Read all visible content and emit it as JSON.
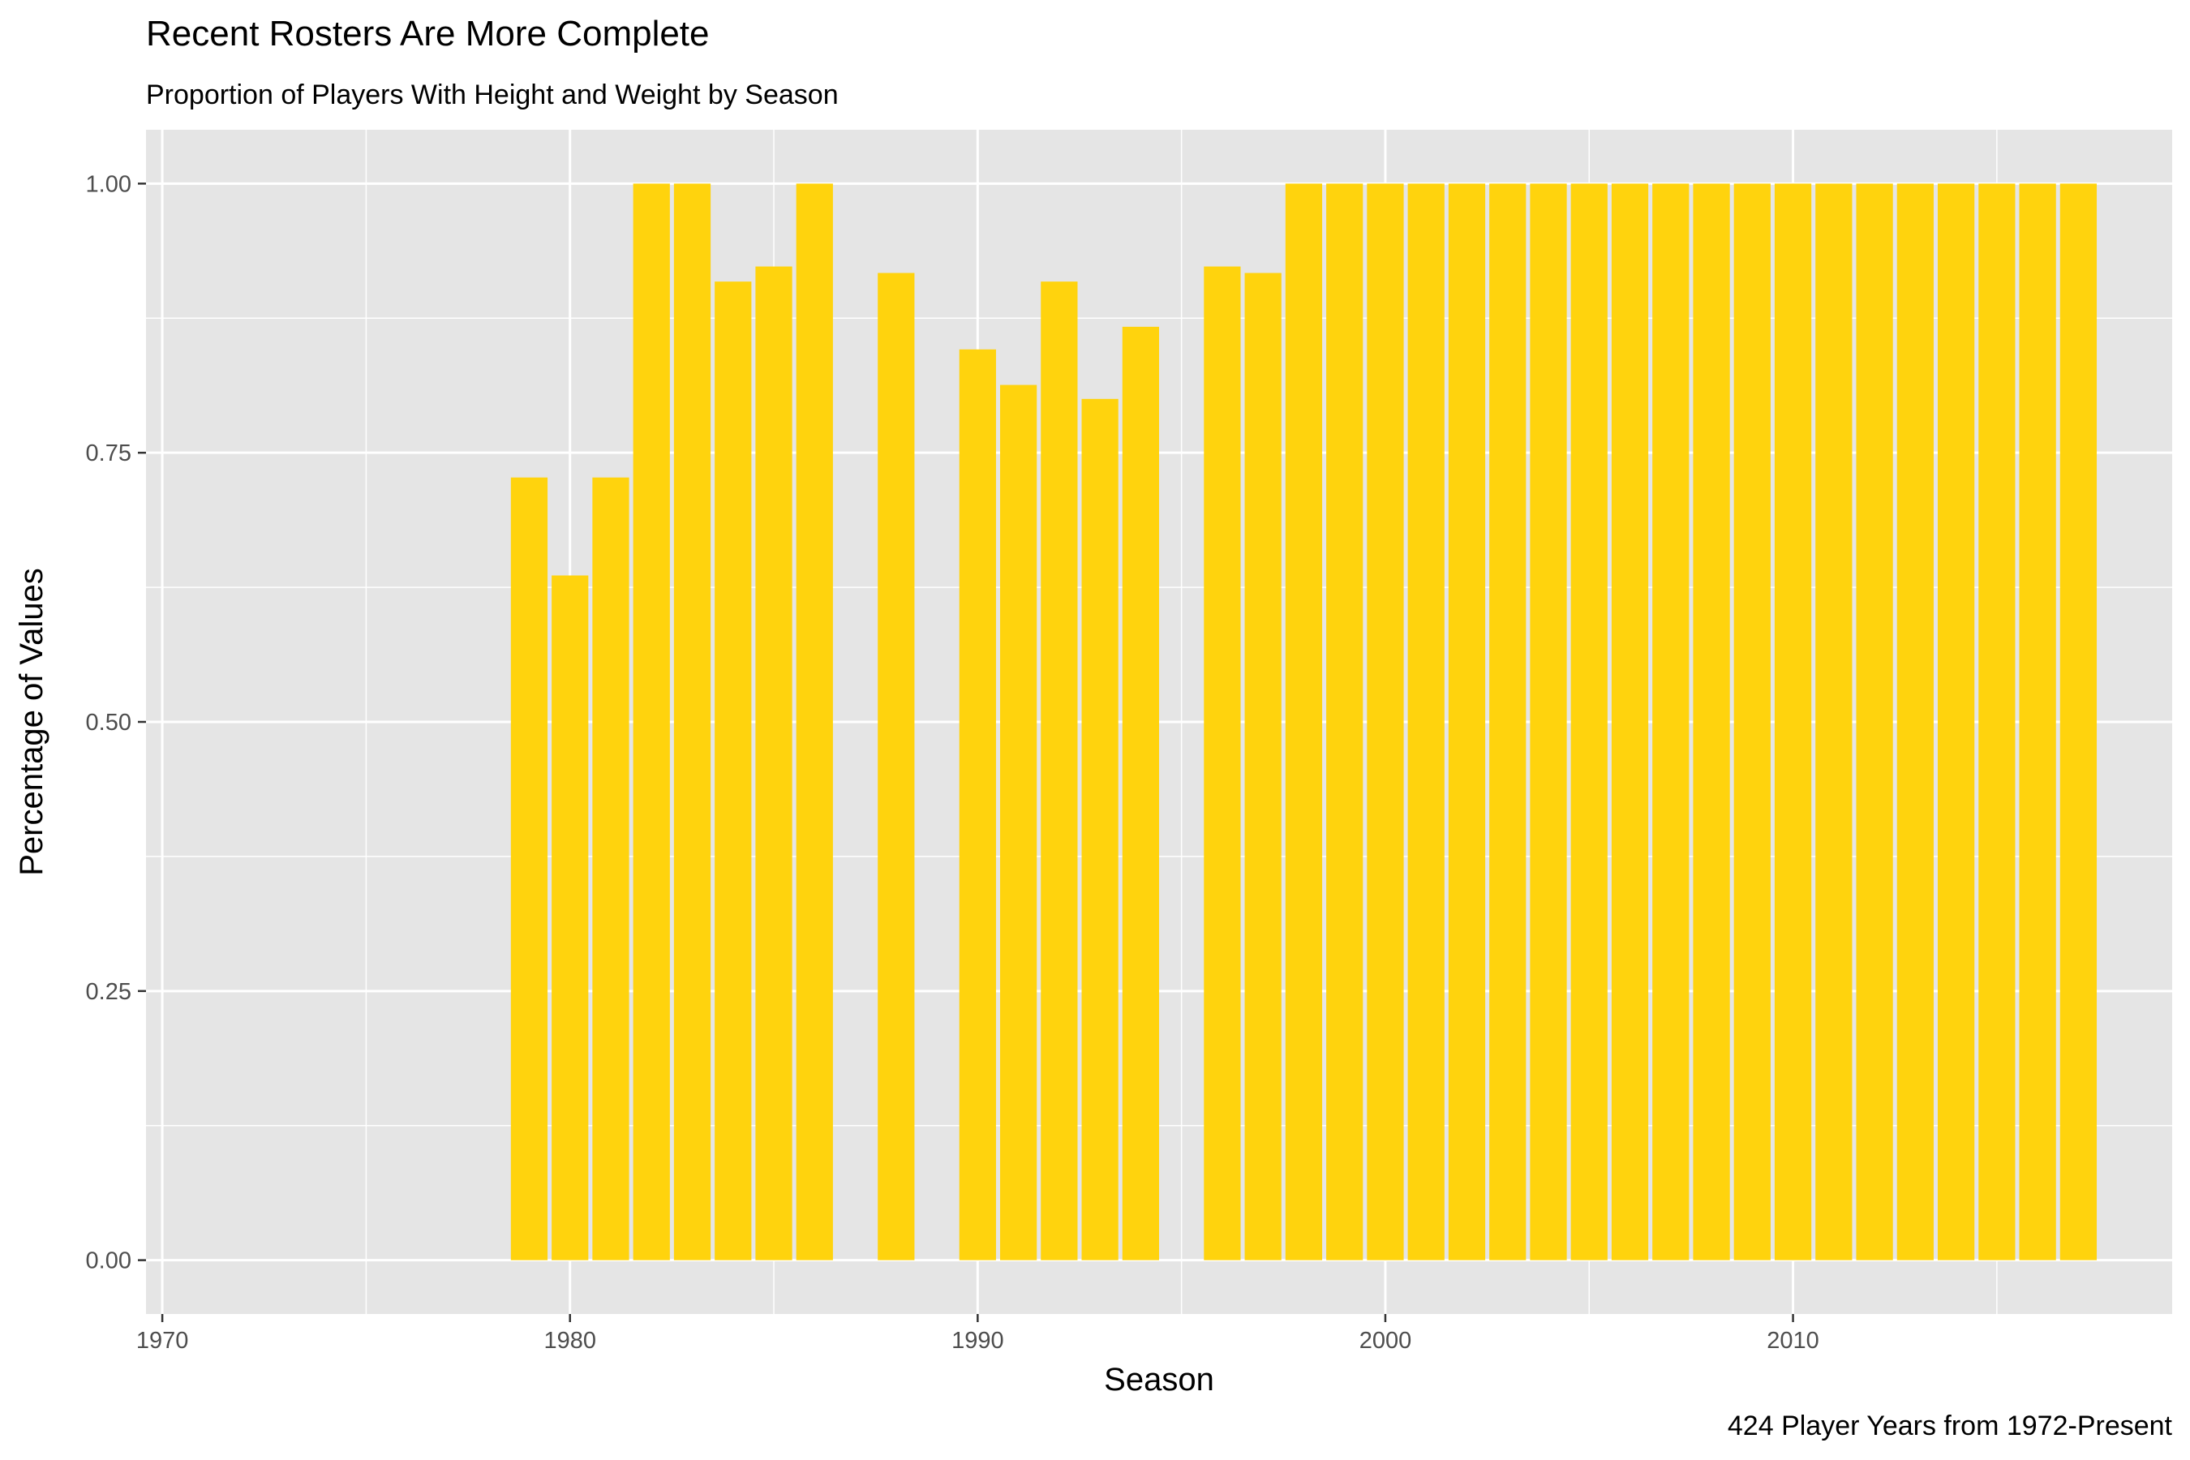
{
  "chart_data": {
    "type": "bar",
    "title": "Recent Rosters Are More Complete",
    "subtitle": "Proportion of Players With Height and Weight by Season",
    "caption": "424 Player Years from 1972-Present",
    "xlabel": "Season",
    "ylabel": "Percentage of Values",
    "xlim": [
      1969.6,
      2019.3
    ],
    "ylim": [
      -0.05,
      1.05
    ],
    "x_ticks": [
      1970,
      1980,
      1990,
      2000,
      2010
    ],
    "x_tick_labels": [
      "1970",
      "1980",
      "1990",
      "2000",
      "2010"
    ],
    "y_ticks": [
      0.0,
      0.25,
      0.5,
      0.75,
      1.0
    ],
    "y_tick_labels": [
      "0.00",
      "0.25",
      "0.50",
      "0.75",
      "1.00"
    ],
    "grid": true,
    "bar_color": "#FFD30D",
    "panel_color": "#E5E5E5",
    "grid_color": "#FFFFFF",
    "x": [
      1979,
      1980,
      1981,
      1982,
      1983,
      1984,
      1985,
      1986,
      1988,
      1990,
      1991,
      1992,
      1993,
      1994,
      1996,
      1997,
      1998,
      1999,
      2000,
      2001,
      2002,
      2003,
      2004,
      2005,
      2006,
      2007,
      2008,
      2009,
      2010,
      2011,
      2012,
      2013,
      2014,
      2015,
      2016,
      2017
    ],
    "values": [
      0.727,
      0.636,
      0.727,
      1.0,
      1.0,
      0.909,
      0.923,
      1.0,
      0.917,
      0.846,
      0.813,
      0.909,
      0.8,
      0.867,
      0.923,
      0.917,
      1.0,
      1.0,
      1.0,
      1.0,
      1.0,
      1.0,
      1.0,
      1.0,
      1.0,
      1.0,
      1.0,
      1.0,
      1.0,
      1.0,
      1.0,
      1.0,
      1.0,
      1.0,
      1.0,
      1.0
    ]
  }
}
